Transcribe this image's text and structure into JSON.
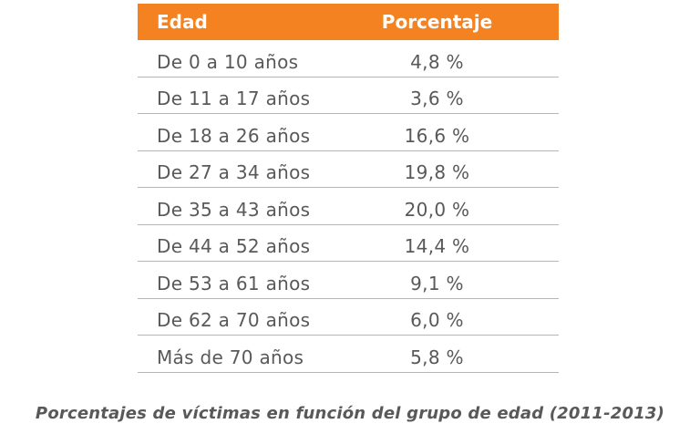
{
  "chart_data": {
    "type": "table",
    "columns": [
      "Edad",
      "Porcentaje"
    ],
    "rows": [
      {
        "age": "De 0 a 10 años",
        "percent": "4,8 %"
      },
      {
        "age": "De 11 a 17 años",
        "percent": "3,6 %"
      },
      {
        "age": "De 18 a 26 años",
        "percent": "16,6 %"
      },
      {
        "age": "De 27 a 34 años",
        "percent": "19,8 %"
      },
      {
        "age": "De 35 a 43 años",
        "percent": "20,0 %"
      },
      {
        "age": "De 44 a 52 años",
        "percent": "14,4 %"
      },
      {
        "age": "De 53 a 61 años",
        "percent": "9,1 %"
      },
      {
        "age": "De 62 a 70 años",
        "percent": "6,0 %"
      },
      {
        "age": "Más de 70 años",
        "percent": "5,8 %"
      }
    ],
    "caption": "Porcentajes de víctimas en función del grupo de edad (2011-2013)",
    "header_color": "#f58220"
  }
}
